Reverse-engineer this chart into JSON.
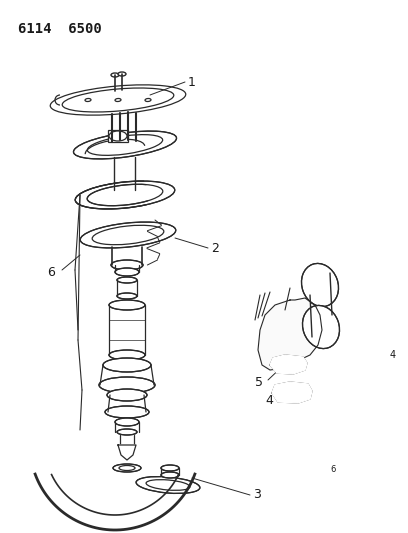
{
  "title": "6114  6500",
  "background_color": "#ffffff",
  "line_color": "#2a2a2a",
  "label_color": "#1a1a1a",
  "label_fontsize": 8,
  "figsize": [
    4.08,
    5.33
  ],
  "dpi": 100
}
